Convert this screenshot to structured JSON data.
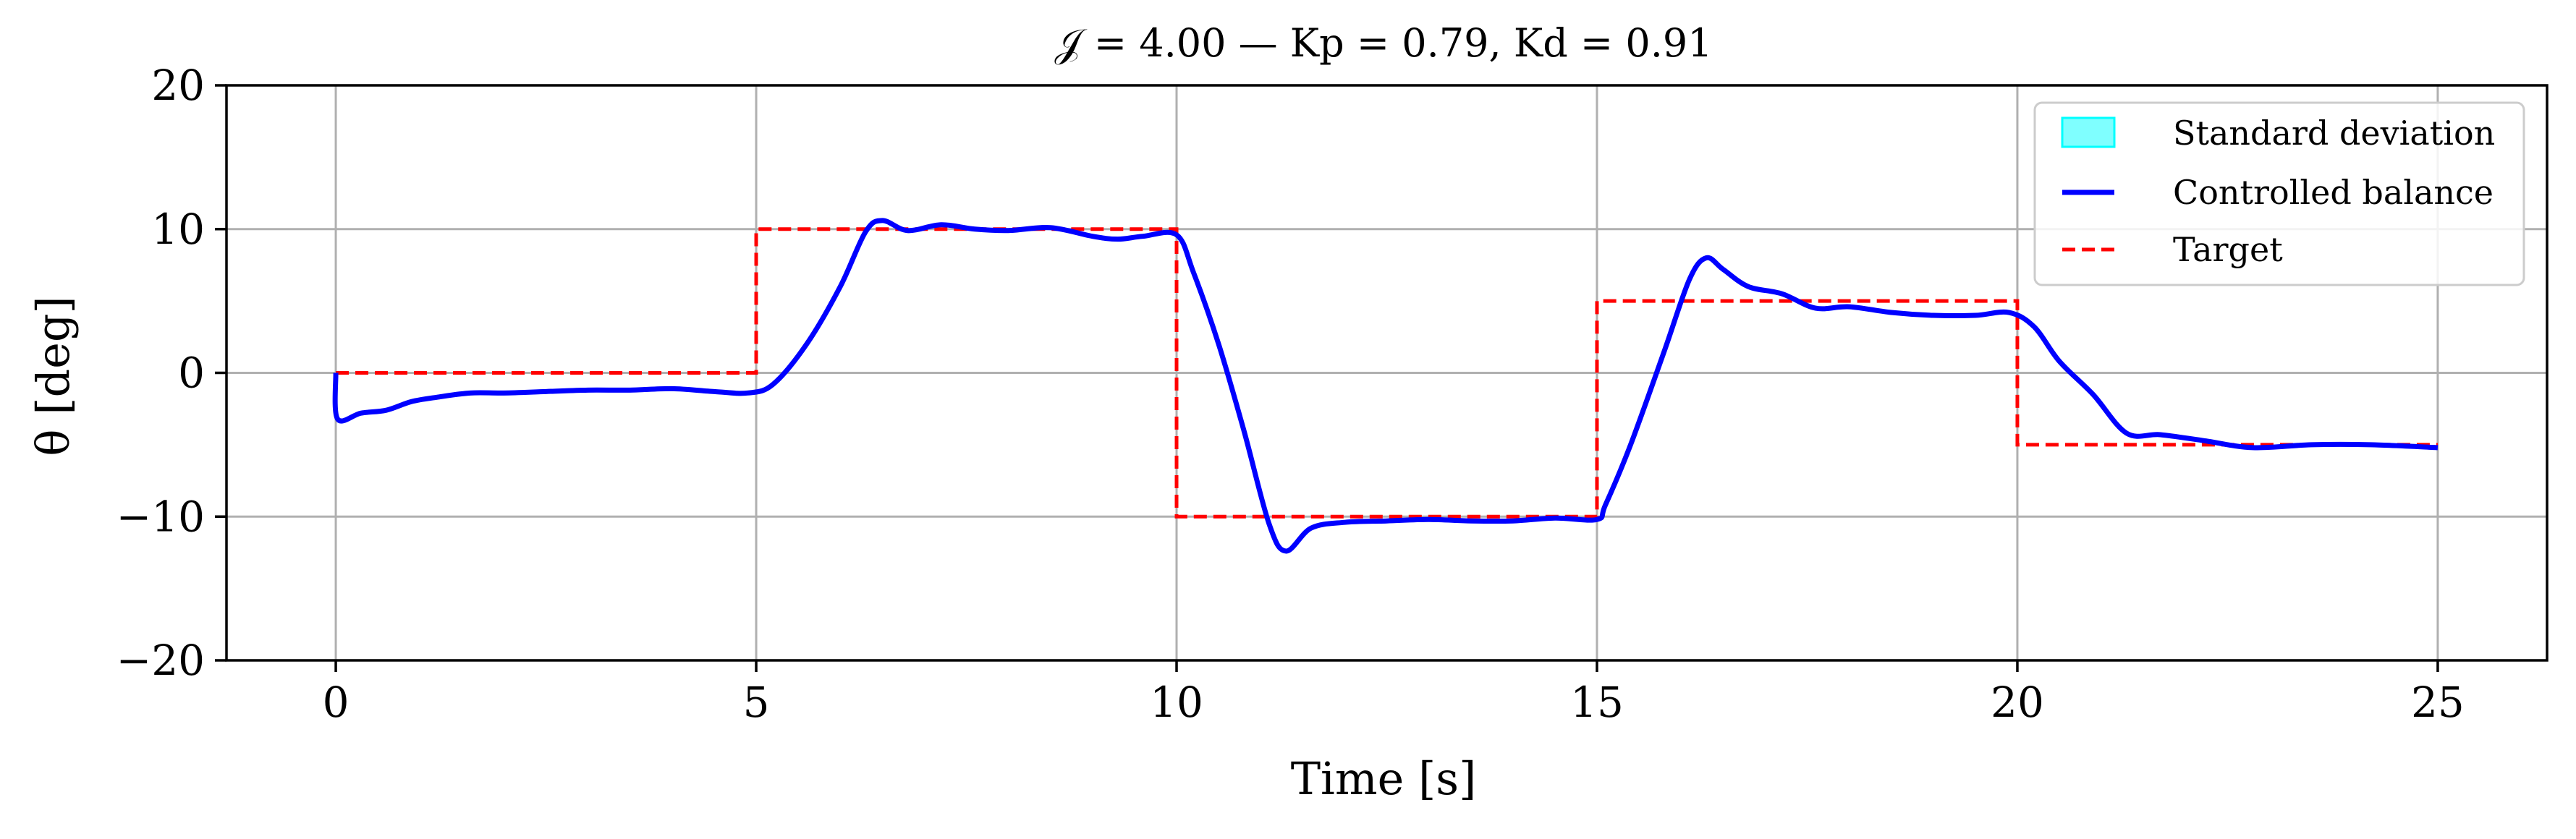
{
  "chart_data": {
    "type": "line",
    "title": "𝒥 = 4.00 — Kp = 0.79, Kd = 0.91",
    "xlabel": "Time [s]",
    "ylabel": "θ [deg]",
    "xlim": [
      -1.3,
      26.3
    ],
    "ylim": [
      -20,
      20
    ],
    "xticks": [
      0,
      5,
      10,
      15,
      20,
      25
    ],
    "yticks": [
      -20,
      -10,
      0,
      10,
      20
    ],
    "xtick_labels": [
      "0",
      "5",
      "10",
      "15",
      "20",
      "25"
    ],
    "ytick_labels": [
      "−20",
      "−10",
      "0",
      "10",
      "20"
    ],
    "grid": true,
    "legend": {
      "position": "top-right",
      "entries": [
        {
          "label": "Standard deviation",
          "kind": "patch",
          "color": "#00ffff"
        },
        {
          "label": "Controlled balance",
          "kind": "line",
          "color": "#0000ff"
        },
        {
          "label": "Target",
          "kind": "dashed",
          "color": "#ff0000"
        }
      ]
    },
    "series": [
      {
        "name": "Controlled balance",
        "color": "#0000ff",
        "x": [
          0,
          0.02,
          0.3,
          0.6,
          0.9,
          1.2,
          1.6,
          2.0,
          2.5,
          3.0,
          3.5,
          4.0,
          4.5,
          4.9,
          5.2,
          5.6,
          6.0,
          6.3,
          6.5,
          6.8,
          7.2,
          7.6,
          8.0,
          8.5,
          9.0,
          9.3,
          9.6,
          10.0,
          10.2,
          10.5,
          10.8,
          11.1,
          11.3,
          11.6,
          12.0,
          12.5,
          13.0,
          13.5,
          14.0,
          14.5,
          15.0,
          15.1,
          15.4,
          15.8,
          16.1,
          16.3,
          16.5,
          16.8,
          17.2,
          17.6,
          18.0,
          18.5,
          19.0,
          19.5,
          19.9,
          20.2,
          20.5,
          20.9,
          21.3,
          21.7,
          22.2,
          22.8,
          23.5,
          24.2,
          25.0
        ],
        "values": [
          0,
          -3.2,
          -2.8,
          -2.6,
          -2.0,
          -1.7,
          -1.4,
          -1.4,
          -1.3,
          -1.2,
          -1.2,
          -1.1,
          -1.3,
          -1.4,
          -0.8,
          2.0,
          6.0,
          9.8,
          10.6,
          9.9,
          10.3,
          10.0,
          9.9,
          10.1,
          9.5,
          9.3,
          9.5,
          9.6,
          7.0,
          2.0,
          -4.0,
          -10.5,
          -12.4,
          -10.8,
          -10.4,
          -10.3,
          -10.2,
          -10.3,
          -10.3,
          -10.1,
          -10.2,
          -9.2,
          -5.0,
          1.5,
          6.5,
          8.0,
          7.2,
          6.0,
          5.5,
          4.5,
          4.6,
          4.2,
          4.0,
          4.0,
          4.2,
          3.2,
          0.8,
          -1.5,
          -4.2,
          -4.3,
          -4.7,
          -5.2,
          -5.0,
          -5.0,
          -5.2
        ]
      },
      {
        "name": "Target",
        "color": "#ff0000",
        "style": "dashed",
        "x": [
          0,
          5,
          5,
          10,
          10,
          15,
          15,
          20,
          20,
          25
        ],
        "values": [
          0,
          0,
          10,
          10,
          -10,
          -10,
          5,
          5,
          -5,
          -5
        ]
      }
    ]
  }
}
